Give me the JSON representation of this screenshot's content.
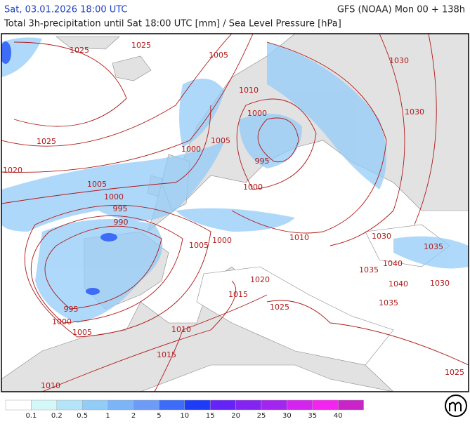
{
  "header": {
    "datetime": "Sat, 03.01.2026 18:00 UTC",
    "model": "GFS (NOAA) Mon 00 + 138h",
    "title": "Total 3h-precipitation until Sat 18:00 UTC [mm] / Sea Level Pressure [hPa]"
  },
  "map": {
    "isobar_labels": [
      "1025",
      "1025",
      "1005",
      "1030",
      "1010",
      "1000",
      "1030",
      "1025",
      "1005",
      "1000",
      "995",
      "1020",
      "1005",
      "1000",
      "1000",
      "995",
      "990",
      "1005",
      "1000",
      "1010",
      "1030",
      "1035",
      "1040",
      "1035",
      "1040",
      "1030",
      "1020",
      "1015",
      "1025",
      "1035",
      "995",
      "1000",
      "1005",
      "1010",
      "1015",
      "1010",
      "1025"
    ]
  },
  "legend": {
    "colors": [
      "#ffffff",
      "#d4f8f8",
      "#b4e4fa",
      "#94ccf8",
      "#7cb4f8",
      "#6c9cf8",
      "#3c6cf8",
      "#1c3cf8",
      "#6424f8",
      "#8424f0",
      "#a424f0",
      "#d424f0",
      "#f424f0",
      "#c824c8"
    ],
    "labels": [
      "0.1",
      "0.2",
      "0.5",
      "1",
      "2",
      "5",
      "10",
      "15",
      "20",
      "25",
      "30",
      "35",
      "40"
    ]
  }
}
